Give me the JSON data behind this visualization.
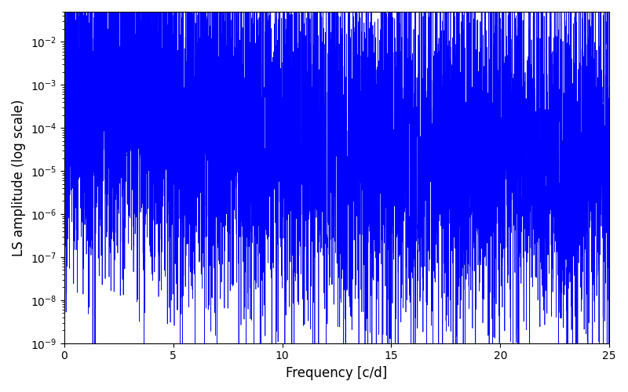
{
  "line_color": "#0000ff",
  "xlabel": "Frequency [c/d]",
  "ylabel": "LS amplitude (log scale)",
  "xlim": [
    0,
    25
  ],
  "ylim": [
    1e-09,
    0.05
  ],
  "freq_max": 25.0,
  "n_points": 8000,
  "seed": 7,
  "background_color": "#ffffff",
  "line_width": 0.5,
  "figsize": [
    8.0,
    5.0
  ],
  "dpi": 100
}
